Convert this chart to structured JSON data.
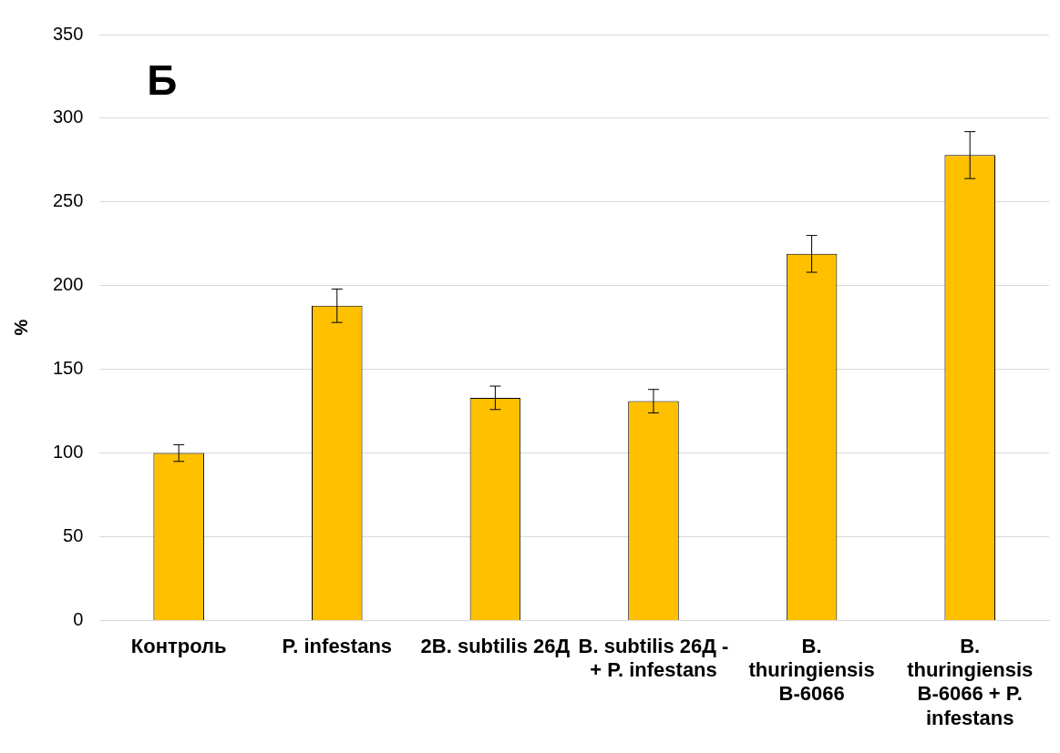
{
  "chart_data": {
    "type": "bar",
    "ylabel": "%",
    "annotations": [
      "Б"
    ],
    "categories": [
      "Контроль",
      "P. infestans",
      "2B. subtilis 26Д",
      "B. subtilis 26Д - + P. infestans",
      "B. thuringiensis B-6066",
      "B. thuringiensis B-6066 + P. infestans"
    ],
    "values": [
      100,
      188,
      133,
      131,
      219,
      278
    ],
    "errors": [
      5,
      10,
      7,
      7,
      11,
      14
    ],
    "color": "#ffc000",
    "ylim": [
      0,
      350
    ],
    "yticks": [
      0,
      50,
      100,
      150,
      200,
      250,
      300,
      350
    ],
    "grid": "y",
    "legend": false
  }
}
